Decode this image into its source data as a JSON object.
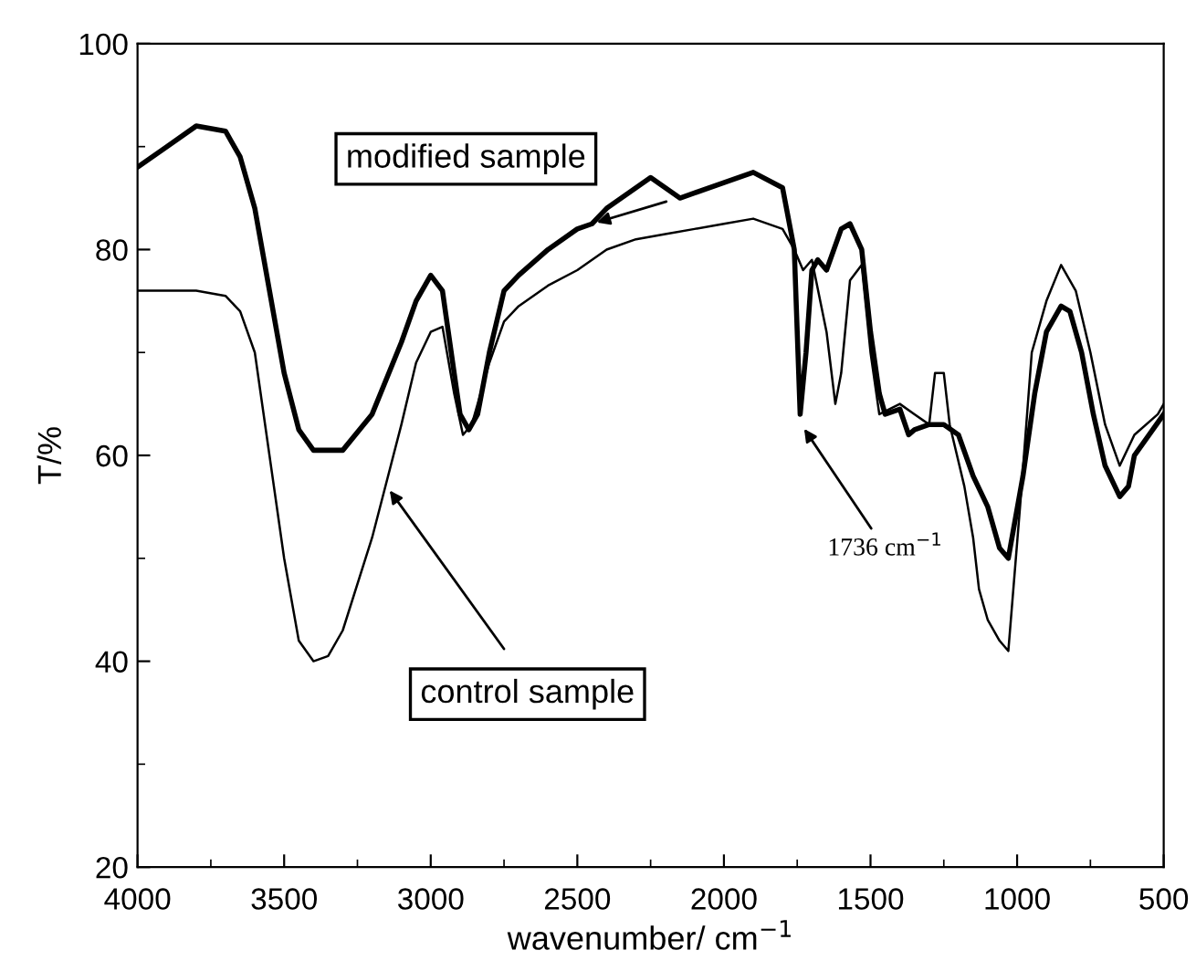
{
  "chart_data": {
    "type": "line",
    "xlabel": "wavenumber/ cm$^{−1}$",
    "ylabel": "T/%",
    "xlim": [
      4000,
      500
    ],
    "xticks": [
      4000,
      3500,
      3000,
      2500,
      2000,
      1500,
      1000,
      500
    ],
    "ylim": [
      20,
      100
    ],
    "yticks": [
      20,
      40,
      60,
      80,
      100
    ],
    "grid": false,
    "legend": false,
    "series": [
      {
        "name": "modified sample",
        "color": "#000000",
        "x": [
          4000,
          3900,
          3800,
          3700,
          3650,
          3600,
          3550,
          3500,
          3450,
          3400,
          3300,
          3200,
          3100,
          3050,
          3000,
          2960,
          2920,
          2900,
          2870,
          2840,
          2800,
          2750,
          2700,
          2600,
          2500,
          2450,
          2400,
          2300,
          2250,
          2200,
          2150,
          2100,
          2000,
          1900,
          1800,
          1760,
          1740,
          1720,
          1700,
          1680,
          1650,
          1600,
          1570,
          1530,
          1500,
          1470,
          1450,
          1400,
          1370,
          1350,
          1300,
          1250,
          1200,
          1150,
          1100,
          1060,
          1030,
          980,
          940,
          900,
          850,
          820,
          780,
          740,
          700,
          650,
          620,
          600,
          500
        ],
        "values": [
          88,
          90,
          92,
          91.5,
          89,
          84,
          76,
          68,
          62.5,
          60.5,
          60.5,
          64,
          71,
          75,
          77.5,
          76,
          68,
          64,
          62.5,
          64,
          70,
          76,
          77.5,
          80,
          82,
          82.5,
          84,
          86,
          87,
          86,
          85,
          85.5,
          86.5,
          87.5,
          86,
          80,
          64,
          70,
          78,
          79,
          78,
          82,
          82.5,
          80,
          72,
          66,
          64,
          64.5,
          62,
          62.5,
          63,
          63,
          62,
          58,
          55,
          51,
          50,
          58,
          66,
          72,
          74.5,
          74,
          70,
          64,
          59,
          56,
          57,
          60,
          64
        ]
      },
      {
        "name": "control sample",
        "color": "#000000",
        "x": [
          4000,
          3800,
          3700,
          3650,
          3600,
          3550,
          3500,
          3450,
          3400,
          3350,
          3300,
          3200,
          3100,
          3050,
          3000,
          2960,
          2920,
          2890,
          2860,
          2800,
          2750,
          2700,
          2600,
          2500,
          2400,
          2300,
          2200,
          2100,
          2000,
          1900,
          1800,
          1760,
          1730,
          1700,
          1650,
          1620,
          1600,
          1570,
          1530,
          1500,
          1470,
          1400,
          1350,
          1300,
          1280,
          1250,
          1230,
          1180,
          1150,
          1130,
          1100,
          1060,
          1030,
          990,
          950,
          900,
          850,
          800,
          750,
          700,
          650,
          600,
          520,
          500
        ],
        "values": [
          76,
          76,
          75.5,
          74,
          70,
          60,
          50,
          42,
          40,
          40.5,
          43,
          52,
          63,
          69,
          72,
          72.5,
          66,
          62,
          63,
          69,
          73,
          74.5,
          76.5,
          78,
          80,
          81,
          81.5,
          82,
          82.5,
          83,
          82,
          80,
          78,
          79,
          72,
          65,
          68,
          77,
          78.5,
          70,
          64,
          65,
          64,
          63,
          68,
          68,
          63,
          57,
          52,
          47,
          44,
          42,
          41,
          55,
          70,
          75,
          78.5,
          76,
          70,
          63,
          59,
          62,
          64,
          65
        ]
      }
    ],
    "annotations": [
      {
        "text": "1736 cm$^{−1}$",
        "x": 1736,
        "y": 63
      }
    ]
  }
}
